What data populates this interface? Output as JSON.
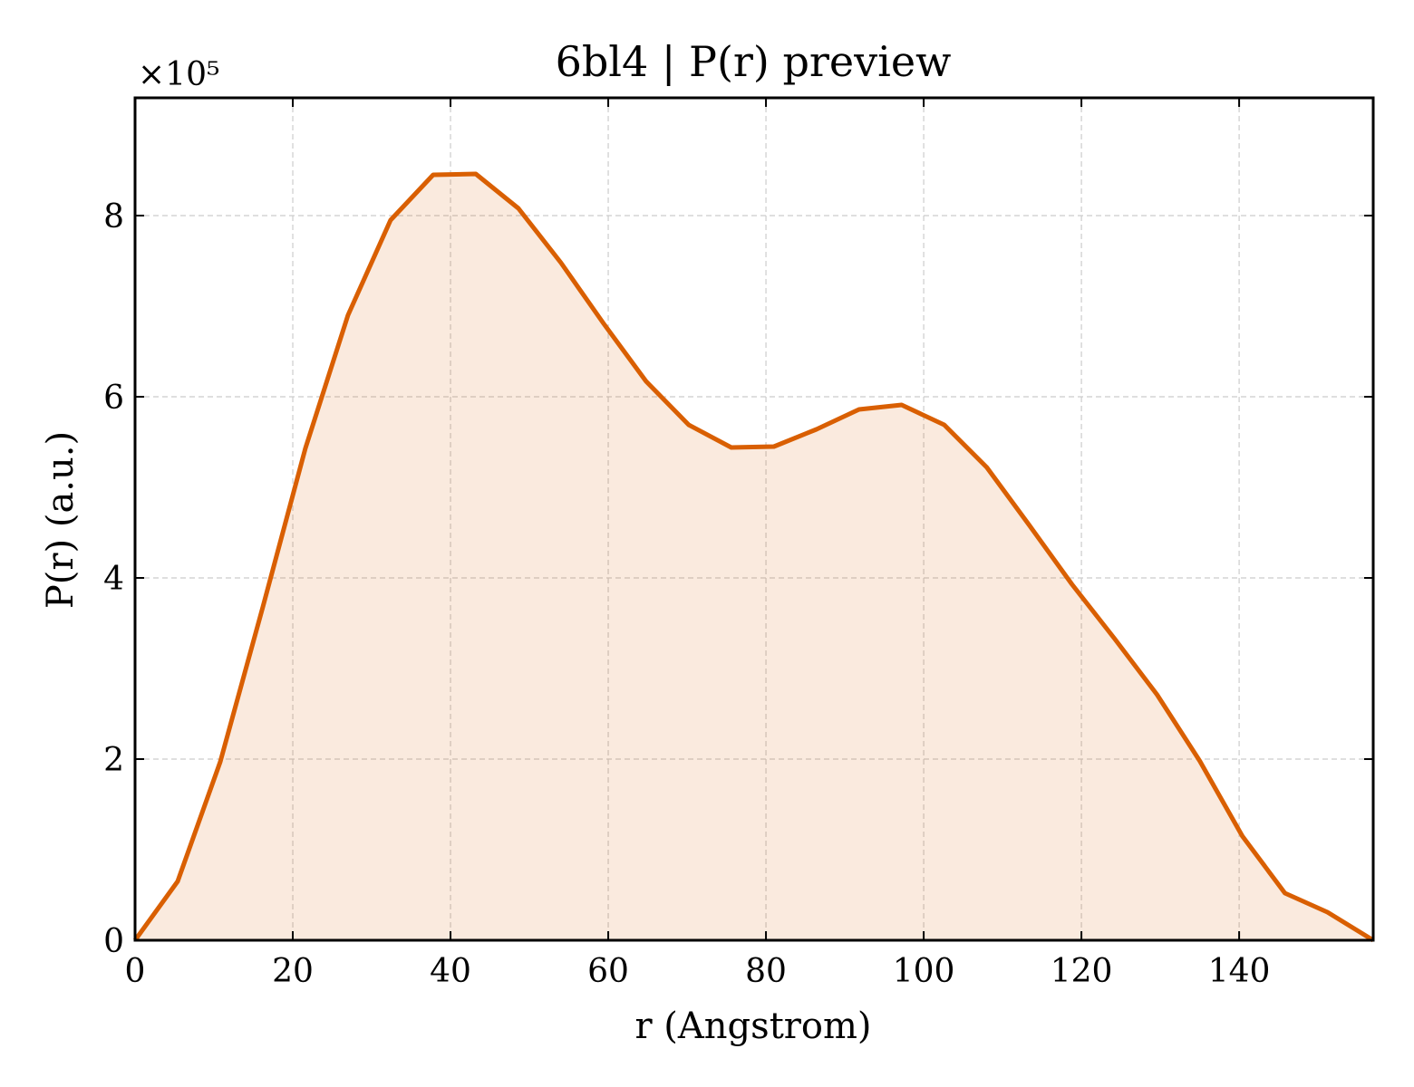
{
  "chart_data": {
    "type": "area",
    "title": "6bl4 | P(r) preview",
    "xlabel": "r (Angstrom)",
    "ylabel": "P(r) (a.u.)",
    "y_offset_label": "×10⁵",
    "y_scale": 100000,
    "xlim": [
      0,
      157
    ],
    "ylim": [
      0,
      930000
    ],
    "x_ticks": [
      0,
      20,
      40,
      60,
      80,
      100,
      120,
      140
    ],
    "y_ticks": [
      0,
      200000,
      400000,
      600000,
      800000
    ],
    "y_tick_labels": [
      "0",
      "2",
      "4",
      "6",
      "8"
    ],
    "grid": true,
    "line_color": "#d95f02",
    "fill_color": "#d95f02",
    "series": [
      {
        "x": [
          0,
          5.4,
          10.8,
          16.2,
          21.6,
          27.0,
          32.4,
          37.8,
          43.2,
          48.6,
          54.0,
          59.4,
          64.8,
          70.2,
          75.6,
          81.0,
          86.4,
          91.8,
          97.2,
          102.6,
          108.0,
          113.4,
          118.8,
          124.2,
          129.6,
          135.0,
          140.4,
          145.8,
          151.2,
          157.0
        ],
        "y": [
          0,
          65000,
          197000,
          368000,
          543000,
          690000,
          795000,
          845000,
          846000,
          808000,
          748000,
          681000,
          617000,
          569000,
          544000,
          545000,
          564000,
          586000,
          591000,
          569000,
          522000,
          458000,
          393000,
          333000,
          271000,
          198000,
          115000,
          52000,
          31000,
          0
        ]
      }
    ]
  }
}
